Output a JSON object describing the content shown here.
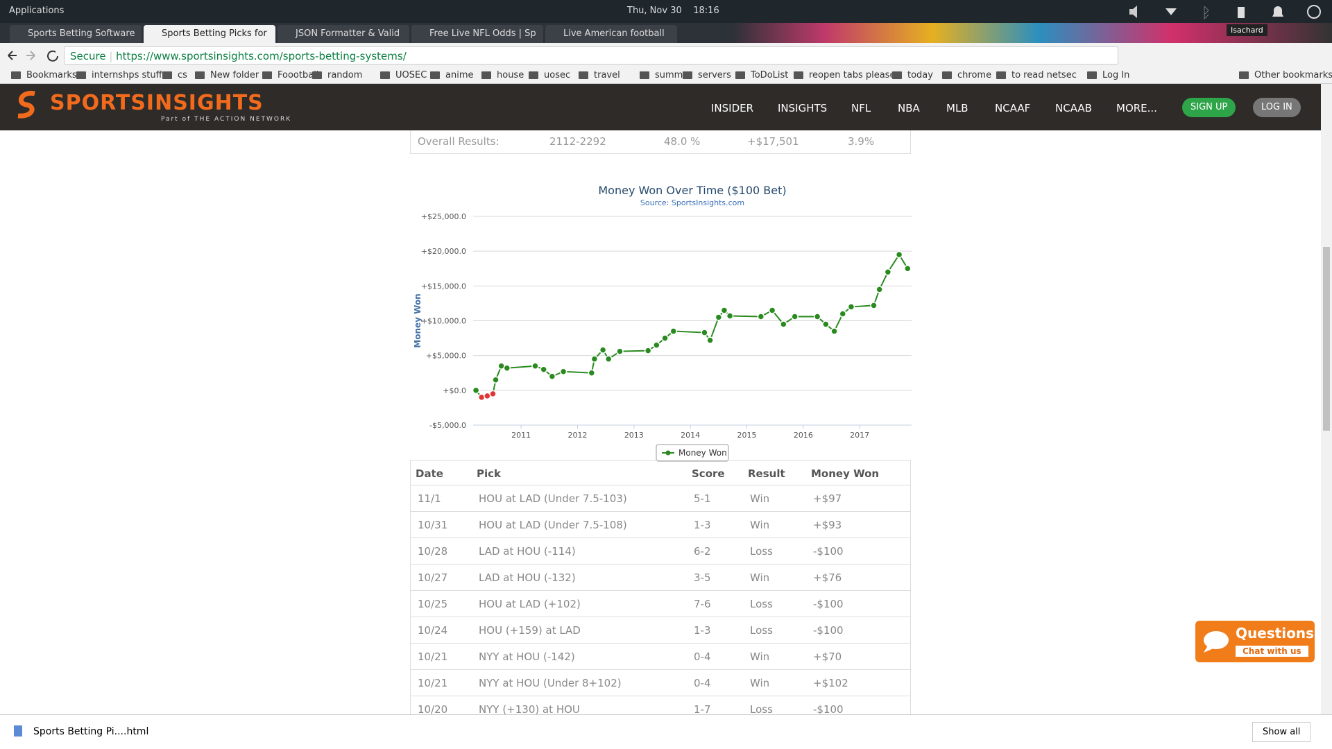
{
  "os_bar": {
    "menu": "Applications",
    "datetime": "Thu, Nov 30    18:16",
    "user": "Isachard"
  },
  "tabs": [
    "Sports Betting Software",
    "Sports Betting Picks for",
    "JSON Formatter & Valid",
    "Free Live NFL Odds | Sp",
    "Live American football"
  ],
  "address": {
    "secure": "Secure",
    "url": "https://www.sportsinsights.com/sports-betting-systems/"
  },
  "bookmarks": [
    "Bookmarks",
    "internshps stuff",
    "cs",
    "New folder",
    "Foootball",
    "random",
    "UOSEC",
    "anime",
    "house",
    "uosec",
    "travel",
    "summer",
    "servers",
    "ToDoList",
    "reopen tabs please",
    "today",
    "chrome",
    "to read netsec",
    "Log In",
    "Other bookmarks"
  ],
  "site_nav": {
    "logo": "SPORTSINSIGHTS",
    "logo_sub": "Part of THE ACTION NETWORK",
    "links": [
      "INSIDER",
      "INSIGHTS",
      "NFL",
      "NBA",
      "MLB",
      "NCAAF",
      "NCAAB",
      "MORE..."
    ],
    "sign_up": "SIGN UP",
    "log_in": "LOG IN"
  },
  "overall": [
    "Overall Results:",
    "2112-2292",
    "48.0 %",
    "+$17,501",
    "3.9%"
  ],
  "chart_data": {
    "type": "line",
    "title": "Money Won Over Time ($100 Bet)",
    "subtitle": "Source: SportsInsights.com",
    "y_label": "Money Won",
    "x": [
      2010.2,
      2010.3,
      2010.4,
      2010.5,
      2010.55,
      2010.65,
      2010.75,
      2011.25,
      2011.4,
      2011.55,
      2011.75,
      2012.25,
      2012.3,
      2012.45,
      2012.55,
      2012.75,
      2013.25,
      2013.4,
      2013.55,
      2013.7,
      2014.25,
      2014.35,
      2014.5,
      2014.6,
      2014.7,
      2015.25,
      2015.45,
      2015.65,
      2015.85,
      2016.25,
      2016.4,
      2016.55,
      2016.7,
      2016.85,
      2017.25,
      2017.35,
      2017.5,
      2017.7,
      2017.85
    ],
    "series": [
      {
        "name": "Money Won",
        "color": "#2a8a1f",
        "negative_color": "#e03535",
        "values": [
          0,
          -1000,
          -800,
          -500,
          1500,
          3500,
          3200,
          3500,
          3000,
          2000,
          2700,
          2500,
          4500,
          5800,
          4500,
          5600,
          5700,
          6500,
          7500,
          8500,
          8300,
          7200,
          10500,
          11500,
          10700,
          10600,
          11500,
          9500,
          10600,
          10600,
          9500,
          8500,
          11000,
          12000,
          12200,
          14500,
          17000,
          19500,
          17500
        ]
      }
    ],
    "xlim": [
      2010.15,
      2017.92
    ],
    "xticks": [
      2011,
      2012,
      2013,
      2014,
      2015,
      2016,
      2017
    ],
    "ylim": [
      -5000,
      25000
    ],
    "yticks": [
      {
        "value": -5000,
        "label": "-$5,000.0"
      },
      {
        "value": 0,
        "label": "+$0.0"
      },
      {
        "value": 5000,
        "label": "+$5,000.0"
      },
      {
        "value": 10000,
        "label": "+$10,000.0"
      },
      {
        "value": 15000,
        "label": "+$15,000.0"
      },
      {
        "value": 20000,
        "label": "+$20,000.0"
      },
      {
        "value": 25000,
        "label": "+$25,000.0"
      }
    ],
    "grid": true,
    "legend": "bottom"
  },
  "table": {
    "header": [
      "Date",
      "Pick",
      "Score",
      "Result",
      "Money Won"
    ],
    "rows": [
      [
        "11/1",
        "HOU at LAD (Under 7.5-103)",
        "5-1",
        "Win",
        "+$97"
      ],
      [
        "10/31",
        "HOU at LAD (Under 7.5-108)",
        "1-3",
        "Win",
        "+$93"
      ],
      [
        "10/28",
        "LAD at HOU (-114)",
        "6-2",
        "Loss",
        "-$100"
      ],
      [
        "10/27",
        "LAD at HOU (-132)",
        "3-5",
        "Win",
        "+$76"
      ],
      [
        "10/25",
        "HOU at LAD (+102)",
        "7-6",
        "Loss",
        "-$100"
      ],
      [
        "10/24",
        "HOU (+159) at LAD",
        "1-3",
        "Loss",
        "-$100"
      ],
      [
        "10/21",
        "NYY at HOU (-142)",
        "0-4",
        "Win",
        "+$70"
      ],
      [
        "10/21",
        "NYY at HOU (Under 8+102)",
        "0-4",
        "Win",
        "+$102"
      ],
      [
        "10/20",
        "NYY (+130) at HOU",
        "1-7",
        "Loss",
        "-$100"
      ]
    ]
  },
  "download_bar": {
    "file": "Sports Betting Pi....html",
    "show_all": "Show all"
  },
  "chat": {
    "title": "Questions?",
    "sub": "Chat with us"
  }
}
